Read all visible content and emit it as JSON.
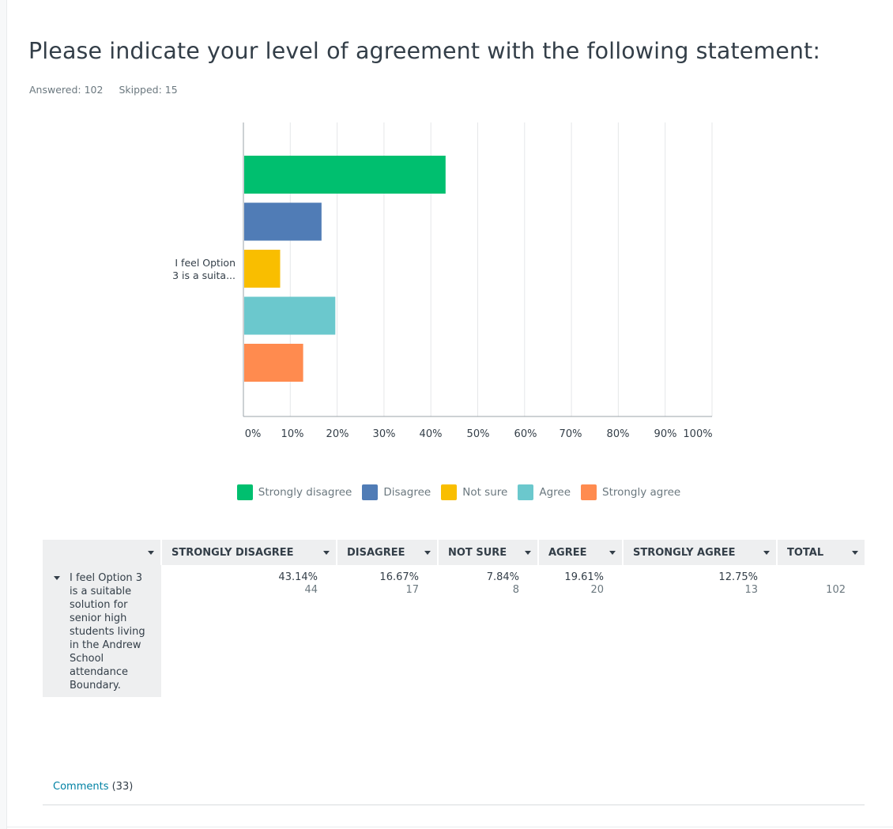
{
  "question": {
    "title": "Please indicate your level of agreement with the following statement:",
    "answered": "Answered: 102",
    "skipped": "Skipped: 15"
  },
  "chart_data": {
    "type": "bar",
    "orientation": "horizontal",
    "categories": [
      "I feel Option 3 is a suitable solution for senior high students living in the Andrew School attendance Boundary."
    ],
    "category_label_lines": [
      "I feel Option",
      "3 is a suita..."
    ],
    "series": [
      {
        "name": "Strongly disagree",
        "color": "#00bf6f",
        "values": [
          43.14
        ]
      },
      {
        "name": "Disagree",
        "color": "#507cb6",
        "values": [
          16.67
        ]
      },
      {
        "name": "Not sure",
        "color": "#f9be00",
        "values": [
          7.84
        ]
      },
      {
        "name": "Agree",
        "color": "#6bc8cd",
        "values": [
          19.61
        ]
      },
      {
        "name": "Strongly agree",
        "color": "#ff8b4f",
        "values": [
          12.75
        ]
      }
    ],
    "xlim": [
      0,
      100
    ],
    "xticks": [
      "0%",
      "10%",
      "20%",
      "30%",
      "40%",
      "50%",
      "60%",
      "70%",
      "80%",
      "90%",
      "100%"
    ],
    "grid": true,
    "legend": "bottom"
  },
  "legend": [
    {
      "label": "Strongly disagree",
      "color": "#00bf6f"
    },
    {
      "label": "Disagree",
      "color": "#507cb6"
    },
    {
      "label": "Not sure",
      "color": "#f9be00"
    },
    {
      "label": "Agree",
      "color": "#6bc8cd"
    },
    {
      "label": "Strongly agree",
      "color": "#ff8b4f"
    }
  ],
  "table": {
    "headers": [
      "STRONGLY DISAGREE",
      "DISAGREE",
      "NOT SURE",
      "AGREE",
      "STRONGLY AGREE",
      "TOTAL"
    ],
    "row_label": "I feel Option 3 is a suitable solution for senior high students living in the Andrew School attendance Boundary.",
    "cells": [
      {
        "pct": "43.14%",
        "count": "44"
      },
      {
        "pct": "16.67%",
        "count": "17"
      },
      {
        "pct": "7.84%",
        "count": "8"
      },
      {
        "pct": "19.61%",
        "count": "20"
      },
      {
        "pct": "12.75%",
        "count": "13"
      }
    ],
    "total": "102"
  },
  "comments": {
    "link_label": "Comments",
    "count": "(33)"
  }
}
